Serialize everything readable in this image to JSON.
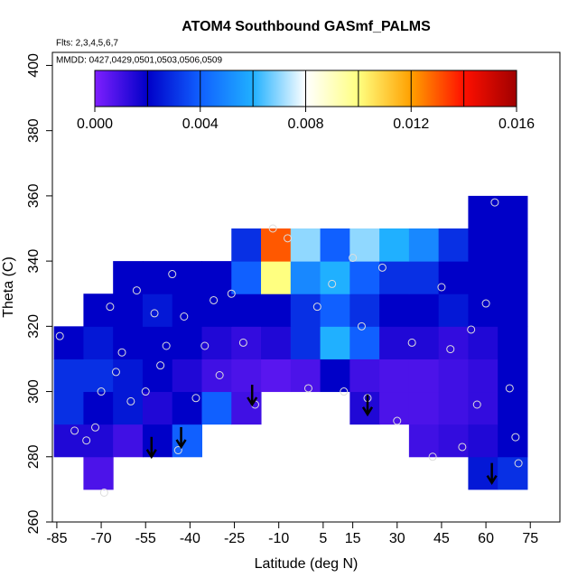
{
  "chart_data": {
    "type": "heatmap",
    "title": "ATOM4 Southbound GASmf_PALMS",
    "annotations": [
      "Flts: 2,3,4,5,6,7",
      "MMDD: 0427,0429,0501,0503,0506,0509"
    ],
    "xlabel": "Latitude (deg N)",
    "ylabel": "Theta (C)",
    "xlim": [
      -86.5,
      85
    ],
    "ylim": [
      260,
      404
    ],
    "xticks": [
      -85,
      -70,
      -55,
      -40,
      -25,
      -10,
      5,
      15,
      30,
      45,
      60,
      75
    ],
    "yticks": [
      260,
      280,
      300,
      320,
      340,
      360,
      380,
      400
    ],
    "x": [
      -86,
      -76,
      -66,
      -56,
      -46,
      -36,
      -26,
      -16,
      -6,
      4,
      14,
      24,
      34,
      44,
      54,
      64,
      74
    ],
    "y": [
      270,
      280,
      290,
      300,
      310,
      320,
      330,
      340,
      350,
      360
    ],
    "z": [
      [
        null,
        0.0008,
        null,
        null,
        null,
        null,
        null,
        null,
        null,
        null,
        null,
        null,
        null,
        null,
        0.0025,
        0.003
      ],
      [
        0.0015,
        0.0015,
        0.001,
        0.002,
        0.004,
        null,
        null,
        null,
        null,
        null,
        null,
        null,
        0.001,
        0.0012,
        0.0015,
        0.002
      ],
      [
        0.003,
        0.002,
        0.0025,
        0.0015,
        0.002,
        0.004,
        0.001,
        null,
        null,
        null,
        0.0015,
        0.0008,
        0.0008,
        0.001,
        0.0012,
        0.002
      ],
      [
        0.003,
        0.003,
        0.0025,
        0.002,
        0.0015,
        0.001,
        0.0008,
        0.0006,
        0.0008,
        0.002,
        0.001,
        0.0008,
        0.0008,
        0.001,
        0.0012,
        0.002
      ],
      [
        0.002,
        0.0025,
        0.002,
        0.002,
        0.002,
        0.0015,
        0.0012,
        0.0015,
        0.003,
        0.006,
        0.004,
        0.0015,
        0.0015,
        0.0012,
        0.0015,
        0.002
      ],
      [
        null,
        0.002,
        0.002,
        0.0025,
        0.002,
        0.002,
        0.002,
        0.002,
        0.003,
        0.004,
        0.003,
        0.002,
        0.002,
        0.0025,
        0.002,
        0.002
      ],
      [
        null,
        null,
        0.002,
        0.002,
        0.002,
        0.002,
        0.004,
        0.01,
        0.005,
        0.006,
        0.004,
        0.003,
        0.003,
        0.002,
        0.002,
        0.002
      ],
      [
        null,
        null,
        null,
        null,
        null,
        null,
        0.003,
        0.013,
        0.007,
        0.004,
        0.007,
        0.006,
        0.005,
        0.003,
        0.002,
        0.002
      ],
      [
        null,
        null,
        null,
        null,
        null,
        null,
        null,
        null,
        null,
        null,
        null,
        null,
        null,
        null,
        0.002,
        0.002
      ]
    ],
    "colorbar": {
      "lim": [
        0,
        0.016
      ],
      "ticks": [
        {
          "value": 0,
          "label": "0.000"
        },
        0.004,
        0.008,
        0.012,
        0.016
      ],
      "levels": [
        0.002,
        0.004,
        0.006,
        0.008,
        0.01,
        0.012,
        0.014,
        0.016
      ],
      "colors": [
        "#7f1fff",
        "#0000c8",
        "#1060ff",
        "#20b0ff",
        "#ffffff",
        "#ffff80",
        "#ffa000",
        "#ff1000",
        "#a00000"
      ]
    },
    "points": {
      "lat": [
        -84,
        -79,
        -75,
        -72,
        -70,
        -69,
        -67,
        -65,
        -63,
        -60,
        -58,
        -55,
        -52,
        -50,
        -48,
        -46,
        -44,
        -42,
        -38,
        -35,
        -32,
        -30,
        -26,
        -22,
        -18,
        -12,
        -7,
        0,
        3,
        8,
        12,
        15,
        18,
        20,
        25,
        30,
        35,
        42,
        45,
        48,
        52,
        55,
        57,
        60,
        63,
        68,
        70,
        71
      ],
      "theta": [
        317,
        288,
        285,
        289,
        300,
        269,
        326,
        306,
        312,
        297,
        331,
        300,
        324,
        308,
        314,
        336,
        282,
        323,
        298,
        314,
        328,
        305,
        330,
        315,
        296,
        350,
        347,
        301,
        326,
        333,
        300,
        341,
        320,
        298,
        338,
        291,
        315,
        280,
        332,
        313,
        283,
        319,
        296,
        327,
        358,
        301,
        286,
        278
      ]
    },
    "arrows": [
      {
        "lat": -53,
        "theta": 280
      },
      {
        "lat": -43,
        "theta": 283
      },
      {
        "lat": -19,
        "theta": 296
      },
      {
        "lat": 20,
        "theta": 293
      },
      {
        "lat": 62,
        "theta": 272
      }
    ]
  }
}
